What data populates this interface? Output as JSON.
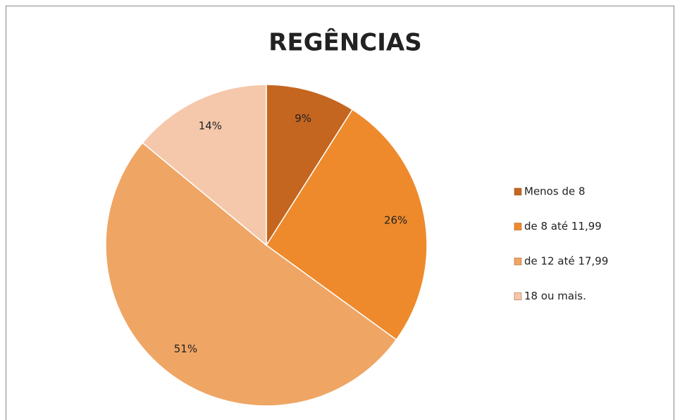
{
  "chart_data": {
    "type": "pie",
    "title": "REGÊNCIAS",
    "categories": [
      "Menos de 8",
      "de 8 até 11,99",
      "de 12 até 17,99",
      "18 ou mais."
    ],
    "values": [
      9,
      26,
      51,
      14
    ],
    "value_labels": [
      "9%",
      "26%",
      "51%",
      "14%"
    ],
    "colors": [
      "#c4661f",
      "#ee8a2c",
      "#efa564",
      "#f5c8ab"
    ],
    "legend": "right"
  }
}
